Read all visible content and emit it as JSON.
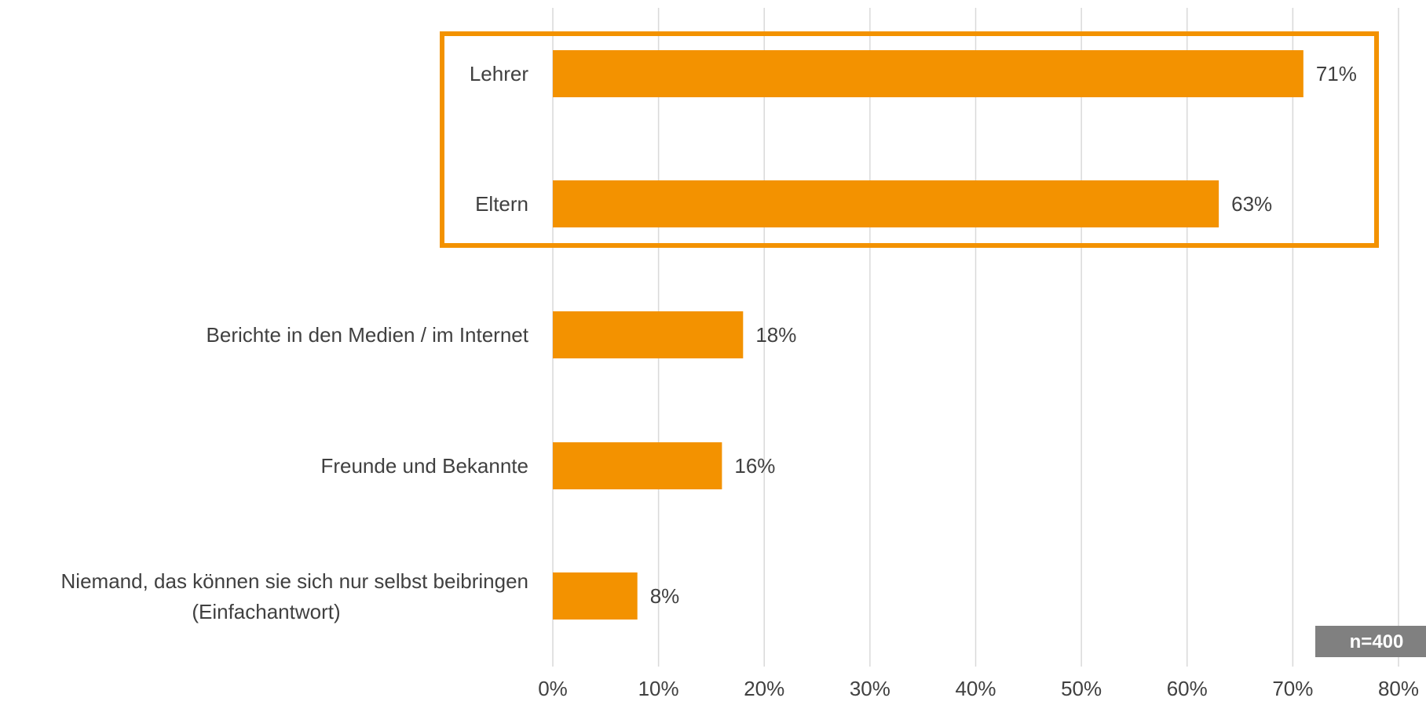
{
  "chart_data": {
    "type": "bar",
    "orientation": "horizontal",
    "categories": [
      [
        "Lehrer"
      ],
      [
        "Eltern"
      ],
      [
        "Berichte in den Medien / im Internet"
      ],
      [
        "Freunde und Bekannte"
      ],
      [
        "Niemand, das können sie sich nur selbst beibringen",
        "(Einfachantwort)"
      ]
    ],
    "values": [
      71,
      63,
      18,
      16,
      8
    ],
    "value_labels": [
      "71%",
      "63%",
      "18%",
      "16%",
      "8%"
    ],
    "xlim": [
      0,
      80
    ],
    "xticks": [
      0,
      10,
      20,
      30,
      40,
      50,
      60,
      70,
      80
    ],
    "xtick_labels": [
      "0%",
      "10%",
      "20%",
      "30%",
      "40%",
      "50%",
      "60%",
      "70%",
      "80%"
    ],
    "grid": "vertical",
    "highlight": {
      "categories": [
        "Lehrer",
        "Eltern"
      ],
      "color": "#f39200"
    },
    "bar_color": "#f39200",
    "sample_note": "n=400",
    "sample_note_bg": "#808080"
  }
}
